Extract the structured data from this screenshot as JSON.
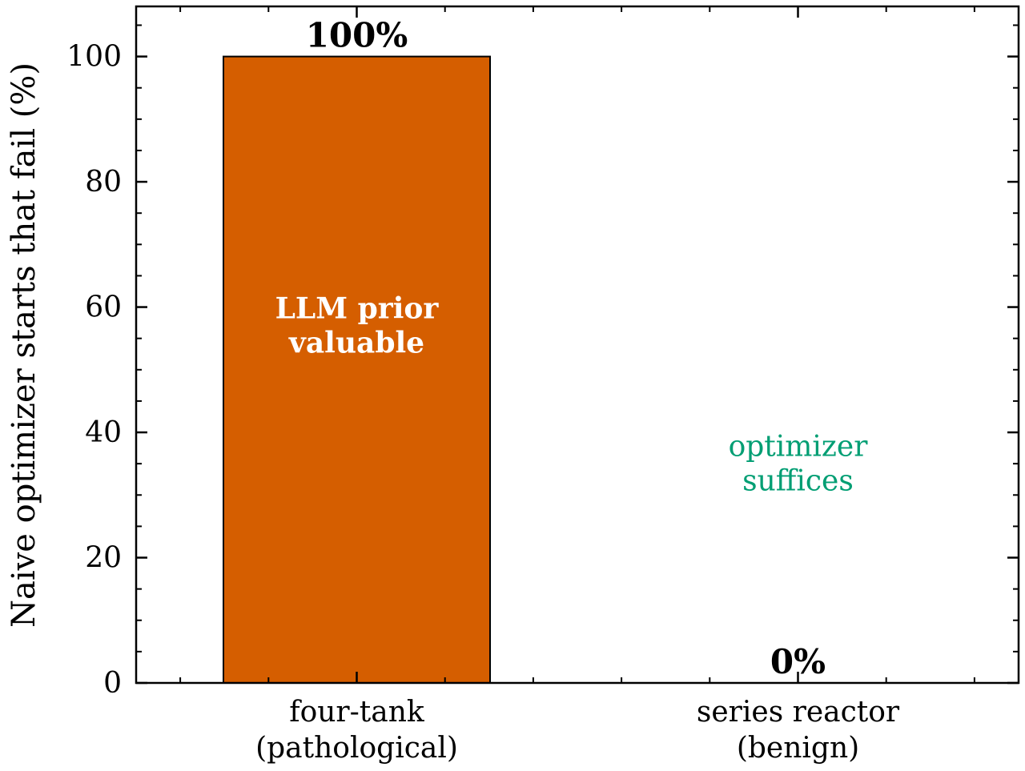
{
  "chart_data": {
    "type": "bar",
    "categories": [
      "four-tank (pathological)",
      "series reactor (benign)"
    ],
    "category_lines": [
      [
        "four-tank",
        "(pathological)"
      ],
      [
        "series reactor",
        "(benign)"
      ]
    ],
    "values": [
      100,
      0
    ],
    "value_labels": [
      "100%",
      "0%"
    ],
    "ylabel": "Naive optimizer starts that fail (%)",
    "xlabel": "",
    "ylim": [
      0,
      108
    ],
    "yticks": [
      0,
      20,
      40,
      60,
      80,
      100
    ],
    "ytick_labels": [
      "0",
      "20",
      "40",
      "60",
      "80",
      "100"
    ],
    "minor_ytick_step": 5,
    "bar_color": "#d55e00",
    "grid": false,
    "annotations": [
      {
        "category_index": 0,
        "lines": [
          "LLM prior",
          "valuable"
        ],
        "y": 57,
        "color": "#ffffff",
        "weight": "bold"
      },
      {
        "category_index": 1,
        "lines": [
          "optimizer",
          "suffices"
        ],
        "y": 35,
        "color": "#009e73",
        "weight": "normal"
      }
    ]
  }
}
